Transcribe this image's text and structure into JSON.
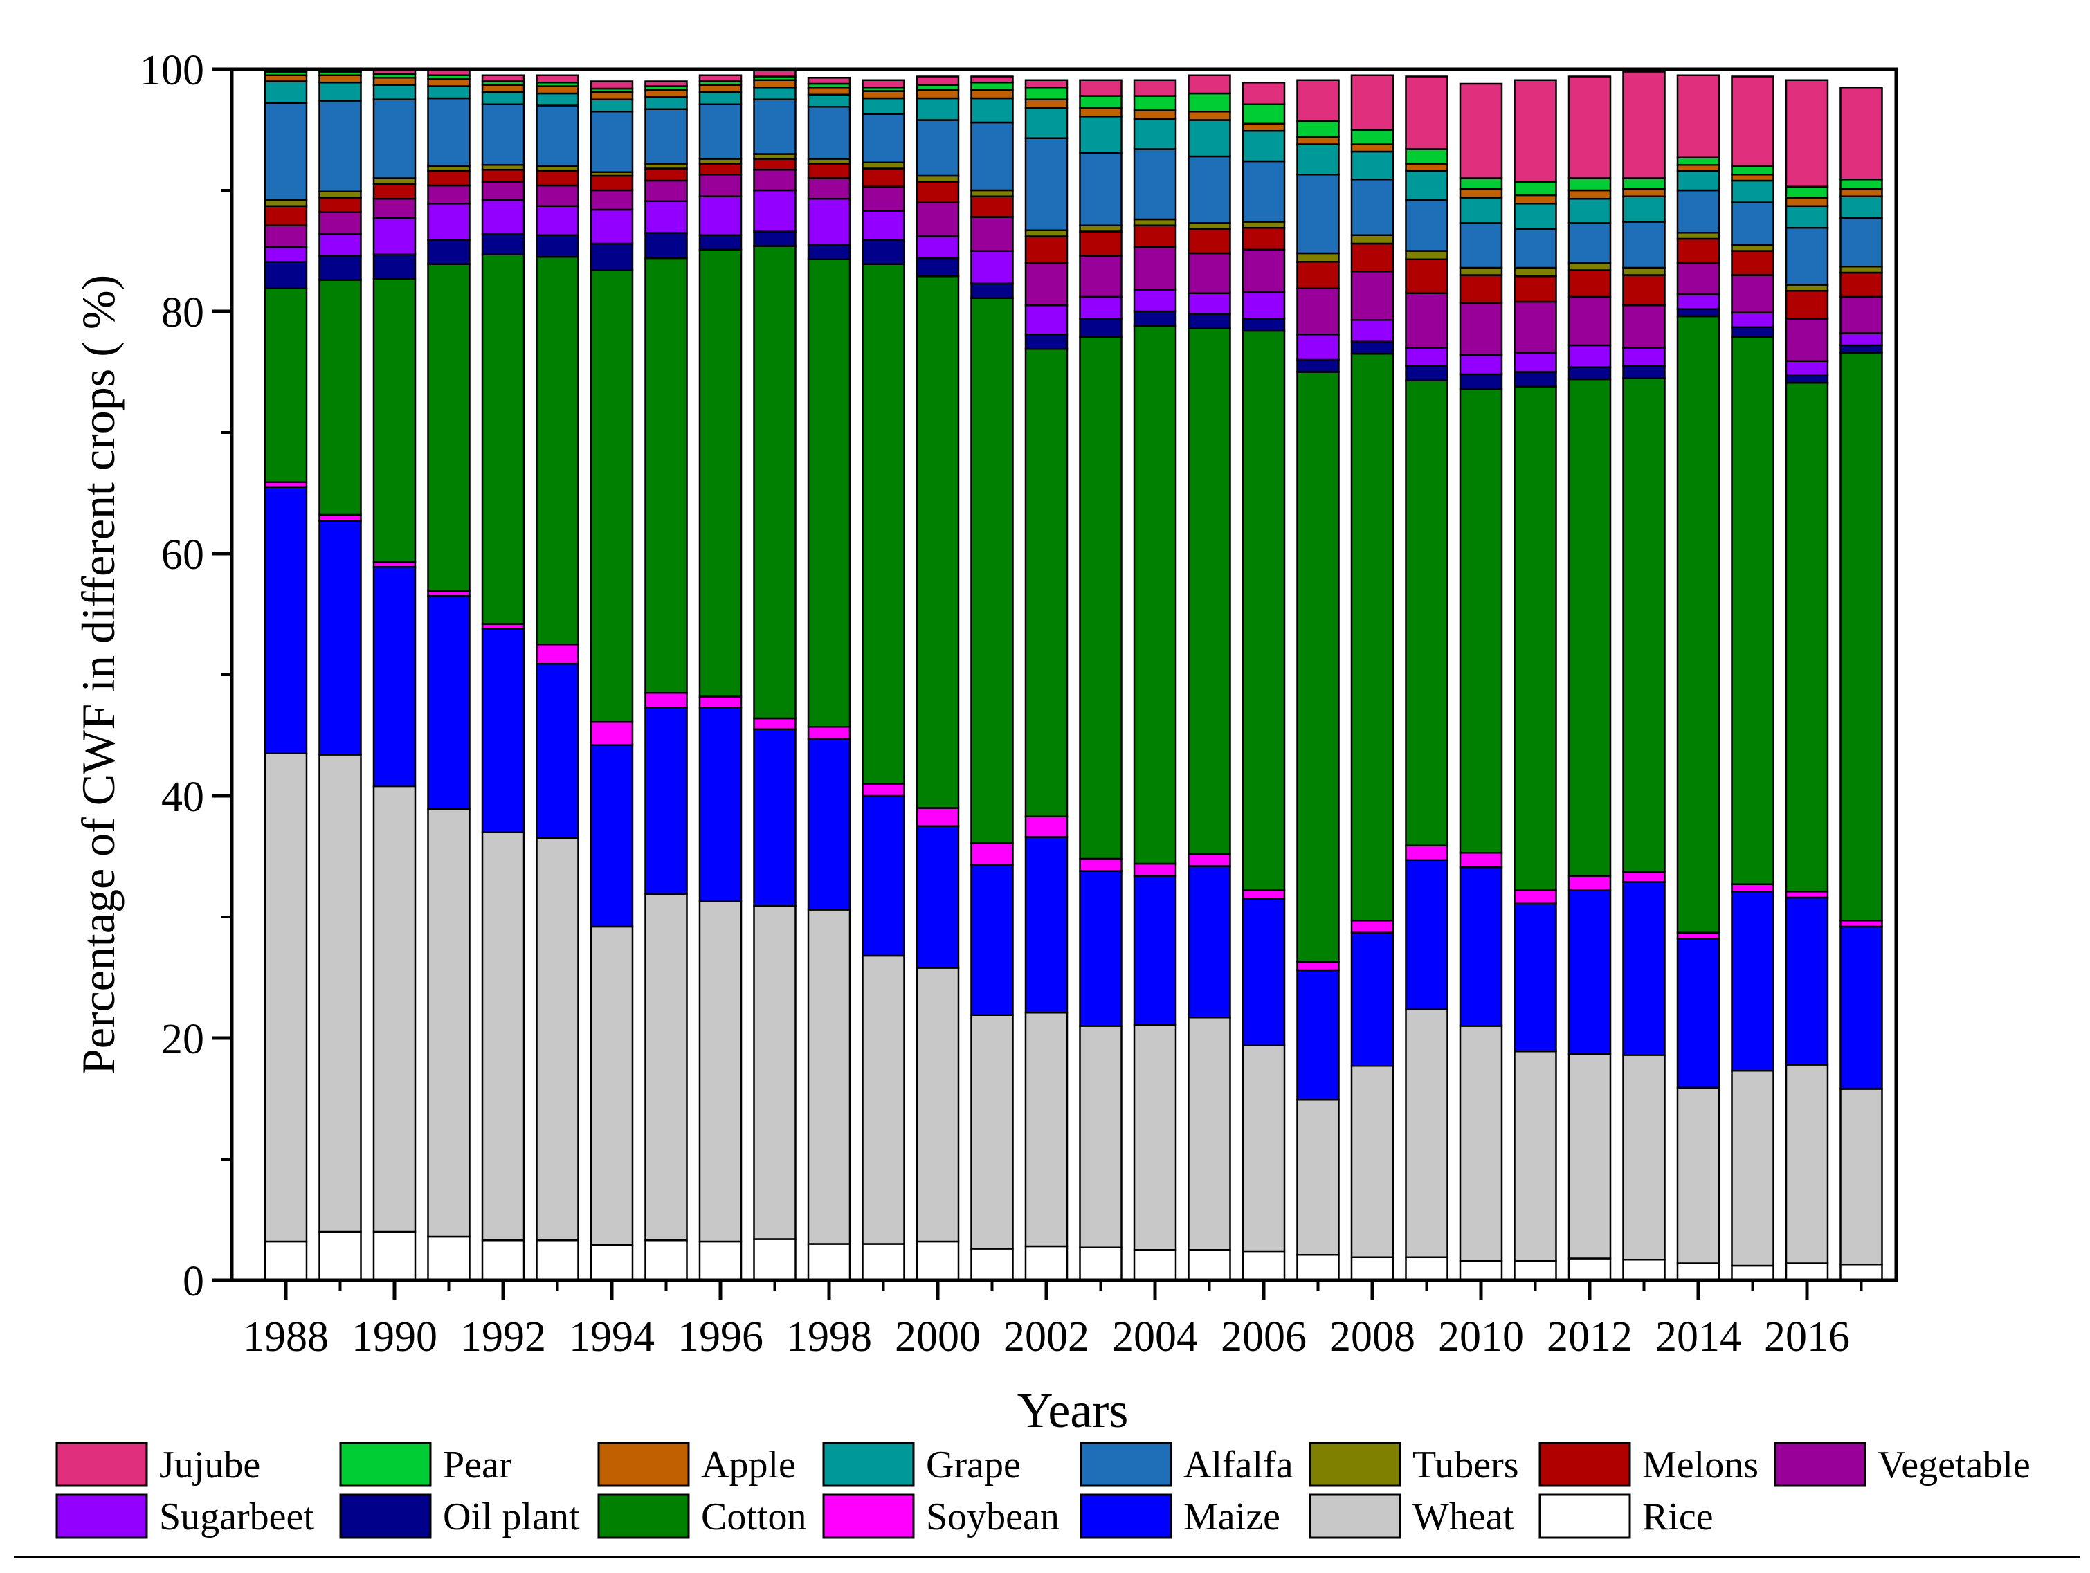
{
  "chart_data": {
    "type": "bar",
    "stacked": true,
    "title": "",
    "xlabel": "Years",
    "ylabel": "Percentage of CWF in different crops ( %)",
    "ylim": [
      0,
      100
    ],
    "yticks": [
      "0",
      "20",
      "40",
      "60",
      "80",
      "100"
    ],
    "ytick_values": [
      0,
      20,
      40,
      60,
      80,
      100
    ],
    "categories": [
      "1988",
      "1989",
      "1990",
      "1991",
      "1992",
      "1993",
      "1994",
      "1995",
      "1996",
      "1997",
      "1998",
      "1999",
      "2000",
      "2001",
      "2002",
      "2003",
      "2004",
      "2005",
      "2006",
      "2007",
      "2008",
      "2009",
      "2010",
      "2011",
      "2012",
      "2013",
      "2014",
      "2015",
      "2016",
      "2017"
    ],
    "xtick_labels": [
      "1988",
      "",
      "1990",
      "",
      "1992",
      "",
      "1994",
      "",
      "1996",
      "",
      "1998",
      "",
      "2000",
      "",
      "2002",
      "",
      "2004",
      "",
      "2006",
      "",
      "2008",
      "",
      "2010",
      "",
      "2012",
      "",
      "2014",
      "",
      "2016",
      ""
    ],
    "legend_position": "bottom",
    "series": [
      {
        "name": "Rice",
        "color": "#ffffff",
        "values": [
          3.2,
          4.0,
          4.0,
          3.6,
          3.3,
          3.3,
          2.9,
          3.3,
          3.2,
          3.4,
          3.0,
          3.0,
          3.2,
          2.6,
          2.8,
          2.7,
          2.5,
          2.5,
          2.4,
          2.1,
          1.9,
          1.9,
          1.6,
          1.6,
          1.8,
          1.7,
          1.4,
          1.2,
          1.4,
          1.3
        ]
      },
      {
        "name": "Wheat",
        "color": "#c8c8c8",
        "values": [
          40.3,
          39.4,
          36.8,
          35.3,
          33.7,
          33.2,
          26.3,
          28.6,
          28.1,
          27.5,
          27.6,
          23.8,
          22.6,
          19.3,
          19.3,
          18.3,
          18.6,
          19.2,
          17.0,
          12.8,
          15.8,
          20.5,
          19.4,
          17.3,
          16.9,
          16.9,
          14.5,
          16.1,
          16.4,
          14.5
        ]
      },
      {
        "name": "Maize",
        "color": "#0000ff",
        "values": [
          22.0,
          19.3,
          18.1,
          17.6,
          16.8,
          14.4,
          15.0,
          15.4,
          16.0,
          14.6,
          14.1,
          13.2,
          11.7,
          12.4,
          14.5,
          12.8,
          12.3,
          12.5,
          12.1,
          10.7,
          11.0,
          12.3,
          13.1,
          12.2,
          13.5,
          14.3,
          12.3,
          14.8,
          13.8,
          13.4
        ]
      },
      {
        "name": "Soybean",
        "color": "#ff00ff",
        "values": [
          0.4,
          0.5,
          0.4,
          0.4,
          0.4,
          1.6,
          1.9,
          1.2,
          0.9,
          0.9,
          1.0,
          1.0,
          1.5,
          1.8,
          1.7,
          1.0,
          1.0,
          1.0,
          0.7,
          0.7,
          1.0,
          1.2,
          1.2,
          1.1,
          1.2,
          0.8,
          0.5,
          0.6,
          0.5,
          0.5
        ]
      },
      {
        "name": "Cotton",
        "color": "#008000",
        "values": [
          16.0,
          19.4,
          23.4,
          27.0,
          30.5,
          32.0,
          37.3,
          35.9,
          36.9,
          39.0,
          38.6,
          42.9,
          43.9,
          45.0,
          38.6,
          43.1,
          44.4,
          43.4,
          46.2,
          48.7,
          46.8,
          38.4,
          38.3,
          41.6,
          41.0,
          40.8,
          50.9,
          45.2,
          42.0,
          46.9
        ]
      },
      {
        "name": "Oil plant",
        "color": "#00008b",
        "values": [
          2.2,
          2.0,
          2.0,
          2.0,
          1.7,
          1.8,
          2.2,
          2.1,
          1.2,
          1.2,
          1.2,
          2.0,
          1.5,
          1.2,
          1.2,
          1.5,
          1.2,
          1.2,
          1.0,
          1.0,
          1.0,
          1.2,
          1.2,
          1.2,
          1.0,
          1.0,
          0.6,
          0.8,
          0.6,
          0.6
        ]
      },
      {
        "name": "Sugarbeet",
        "color": "#9400ff",
        "values": [
          1.2,
          1.8,
          3.0,
          3.0,
          2.8,
          2.4,
          2.8,
          2.6,
          3.2,
          3.4,
          3.8,
          2.4,
          1.8,
          2.7,
          2.4,
          1.8,
          1.8,
          1.7,
          2.2,
          2.1,
          1.8,
          1.5,
          1.6,
          1.6,
          1.8,
          1.5,
          1.2,
          1.2,
          1.2,
          1.0
        ]
      },
      {
        "name": "Vegetable",
        "color": "#990099",
        "values": [
          1.8,
          1.8,
          1.6,
          1.5,
          1.5,
          1.7,
          1.6,
          1.7,
          1.8,
          1.7,
          1.7,
          2.0,
          2.8,
          2.8,
          3.5,
          3.4,
          3.5,
          3.3,
          3.5,
          3.8,
          4.0,
          4.5,
          4.3,
          4.2,
          4.0,
          3.5,
          2.6,
          3.1,
          3.5,
          3.0
        ]
      },
      {
        "name": "Melons",
        "color": "#b00000",
        "values": [
          1.6,
          1.2,
          1.2,
          1.2,
          1.0,
          1.2,
          1.2,
          1.0,
          0.9,
          0.9,
          1.2,
          1.5,
          1.7,
          1.7,
          2.2,
          2.0,
          1.8,
          2.0,
          1.8,
          2.2,
          2.3,
          2.8,
          2.3,
          2.1,
          2.2,
          2.5,
          2.0,
          2.0,
          2.3,
          2.0
        ]
      },
      {
        "name": "Tubers",
        "color": "#808000",
        "values": [
          0.5,
          0.5,
          0.5,
          0.4,
          0.4,
          0.4,
          0.3,
          0.4,
          0.4,
          0.4,
          0.4,
          0.5,
          0.5,
          0.5,
          0.5,
          0.5,
          0.5,
          0.5,
          0.5,
          0.7,
          0.7,
          0.7,
          0.6,
          0.7,
          0.6,
          0.6,
          0.5,
          0.5,
          0.5,
          0.5
        ]
      },
      {
        "name": "Alfalfa",
        "color": "#1e6fb8",
        "values": [
          8.0,
          7.5,
          6.5,
          5.6,
          5.0,
          5.0,
          5.0,
          4.5,
          4.5,
          4.5,
          4.3,
          4.0,
          4.6,
          5.6,
          7.6,
          6.0,
          5.8,
          5.5,
          5.0,
          6.5,
          4.6,
          4.2,
          3.7,
          3.2,
          3.3,
          3.8,
          3.5,
          3.5,
          4.7,
          4.0
        ]
      },
      {
        "name": "Grape",
        "color": "#009999",
        "values": [
          1.8,
          1.5,
          1.2,
          1.0,
          1.0,
          1.0,
          1.0,
          1.0,
          1.0,
          1.0,
          1.0,
          1.3,
          1.8,
          2.0,
          2.5,
          3.0,
          2.5,
          3.0,
          2.5,
          2.5,
          2.3,
          2.4,
          2.1,
          2.1,
          2.0,
          2.1,
          1.6,
          1.8,
          1.8,
          1.8
        ]
      },
      {
        "name": "Apple",
        "color": "#c06000",
        "values": [
          0.5,
          0.6,
          0.6,
          0.6,
          0.6,
          0.6,
          0.6,
          0.6,
          0.6,
          0.6,
          0.6,
          0.6,
          0.7,
          0.7,
          0.7,
          0.7,
          0.7,
          0.7,
          0.6,
          0.6,
          0.6,
          0.6,
          0.7,
          0.7,
          0.7,
          0.6,
          0.5,
          0.5,
          0.7,
          0.6
        ]
      },
      {
        "name": "Pear",
        "color": "#00cc33",
        "values": [
          0.3,
          0.3,
          0.3,
          0.3,
          0.3,
          0.3,
          0.3,
          0.3,
          0.3,
          0.3,
          0.3,
          0.3,
          0.4,
          0.6,
          1.0,
          1.0,
          1.2,
          1.5,
          1.6,
          1.3,
          1.2,
          1.2,
          0.9,
          1.1,
          1.0,
          0.9,
          0.6,
          0.7,
          0.9,
          0.8
        ]
      },
      {
        "name": "Jujube",
        "color": "#e0307d",
        "values": [
          0.2,
          0.2,
          0.4,
          0.5,
          0.5,
          0.6,
          0.6,
          0.4,
          0.5,
          0.5,
          0.5,
          0.6,
          0.7,
          0.5,
          0.6,
          1.3,
          1.3,
          1.5,
          1.8,
          3.4,
          4.5,
          6.0,
          7.8,
          8.4,
          8.4,
          8.8,
          6.8,
          7.4,
          8.8,
          7.6
        ]
      }
    ],
    "legend": [
      [
        "Jujube",
        "Pear",
        "Apple",
        "Grape",
        "Alfalfa",
        "Tubers",
        "Melons",
        "Vegetable"
      ],
      [
        "Sugarbeet",
        "Oil plant",
        "Cotton",
        "Soybean",
        "Maize",
        "Wheat",
        "Rice"
      ]
    ]
  }
}
